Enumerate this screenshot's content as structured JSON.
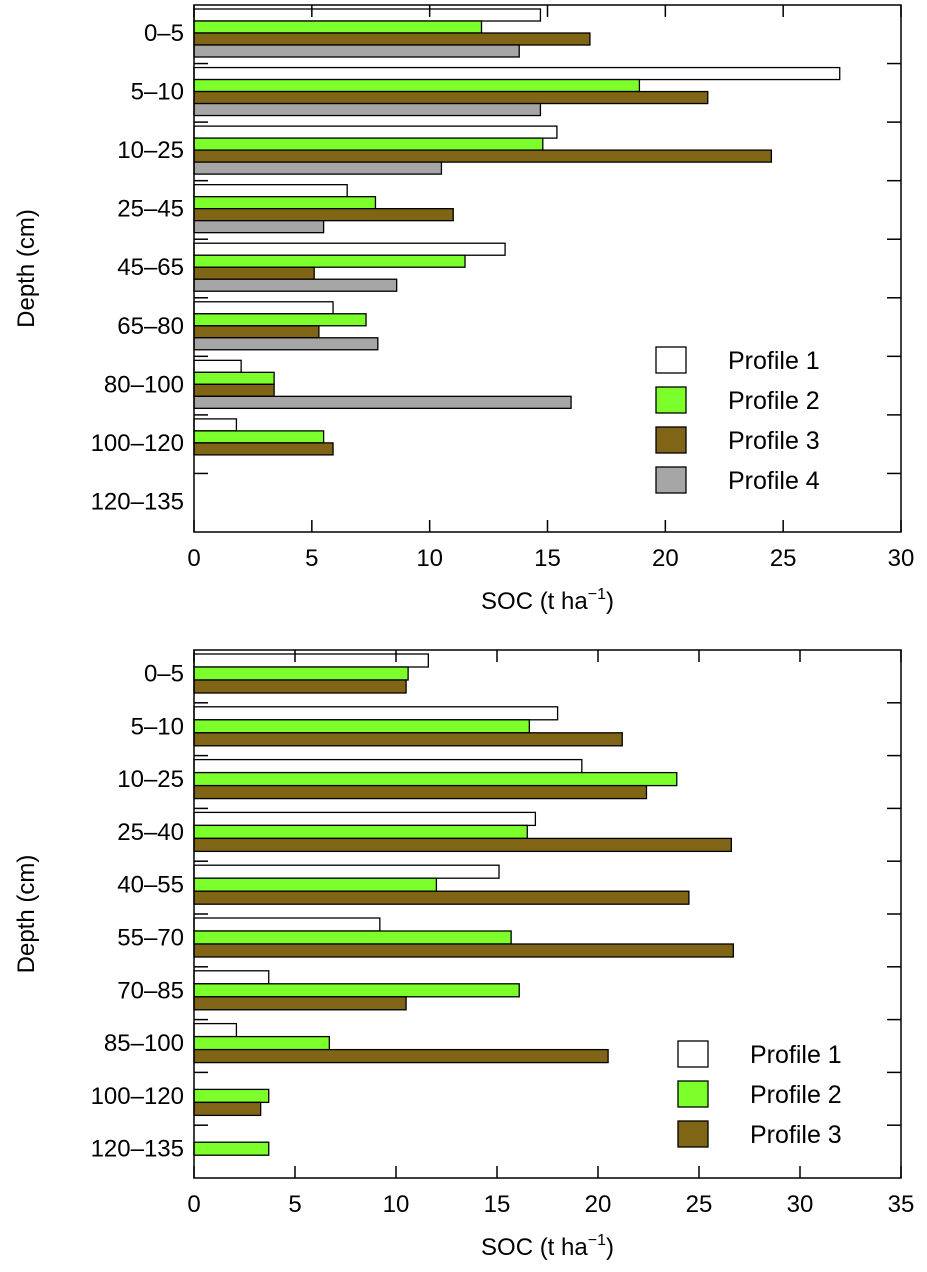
{
  "colors": {
    "profile1": "#ffffff",
    "profile2": "#7cff2b",
    "profile3": "#806516",
    "profile4": "#a6a6a6",
    "profile1_text": "#000000",
    "profile2_text": "#7cff2b",
    "profile3_text": "#806516",
    "profile4_text": "#a6a6a6"
  },
  "chart_data": [
    {
      "type": "bar",
      "orientation": "horizontal",
      "categories": [
        "0–5",
        "5–10",
        "10–25",
        "25–45",
        "45–65",
        "65–80",
        "80–100",
        "100–120",
        "120–135"
      ],
      "series": [
        {
          "name": "Profile 1",
          "values": [
            14.7,
            27.4,
            15.4,
            6.5,
            13.2,
            5.9,
            2.0,
            1.8,
            null
          ]
        },
        {
          "name": "Profile 2",
          "values": [
            12.2,
            18.9,
            14.8,
            7.7,
            11.5,
            7.3,
            3.4,
            5.5,
            null
          ]
        },
        {
          "name": "Profile 3",
          "values": [
            16.8,
            21.8,
            24.5,
            11.0,
            5.1,
            5.3,
            3.4,
            5.9,
            null
          ]
        },
        {
          "name": "Profile 4",
          "values": [
            13.8,
            14.7,
            10.5,
            5.5,
            8.6,
            7.8,
            16.0,
            null,
            null
          ]
        }
      ],
      "xlabel": "SOC (t ha",
      "xlabel_sup": "−1",
      "xlabel_end": ")",
      "ylabel": "Depth (cm)",
      "xlim": [
        0,
        30
      ],
      "xticks": [
        0,
        5,
        10,
        15,
        20,
        25,
        30
      ],
      "legend": "bottom-right",
      "grid": false
    },
    {
      "type": "bar",
      "orientation": "horizontal",
      "categories": [
        "0–5",
        "5–10",
        "10–25",
        "25–40",
        "40–55",
        "55–70",
        "70–85",
        "85–100",
        "100–120",
        "120–135"
      ],
      "series": [
        {
          "name": "Profile 1",
          "values": [
            11.6,
            18.0,
            19.2,
            16.9,
            15.1,
            9.2,
            3.7,
            2.1,
            null,
            null
          ]
        },
        {
          "name": "Profile 2",
          "values": [
            10.6,
            16.6,
            23.9,
            16.5,
            12.0,
            15.7,
            16.1,
            6.7,
            3.7,
            3.7
          ]
        },
        {
          "name": "Profile 3",
          "values": [
            10.5,
            21.2,
            22.4,
            26.6,
            24.5,
            26.7,
            10.5,
            20.5,
            3.3,
            null
          ]
        }
      ],
      "xlabel": "SOC (t ha",
      "xlabel_sup": "−1",
      "xlabel_end": ")",
      "ylabel": "Depth (cm)",
      "xlim": [
        0,
        35
      ],
      "xticks": [
        0,
        5,
        10,
        15,
        20,
        25,
        30,
        35
      ],
      "legend": "bottom-right",
      "grid": false
    }
  ]
}
